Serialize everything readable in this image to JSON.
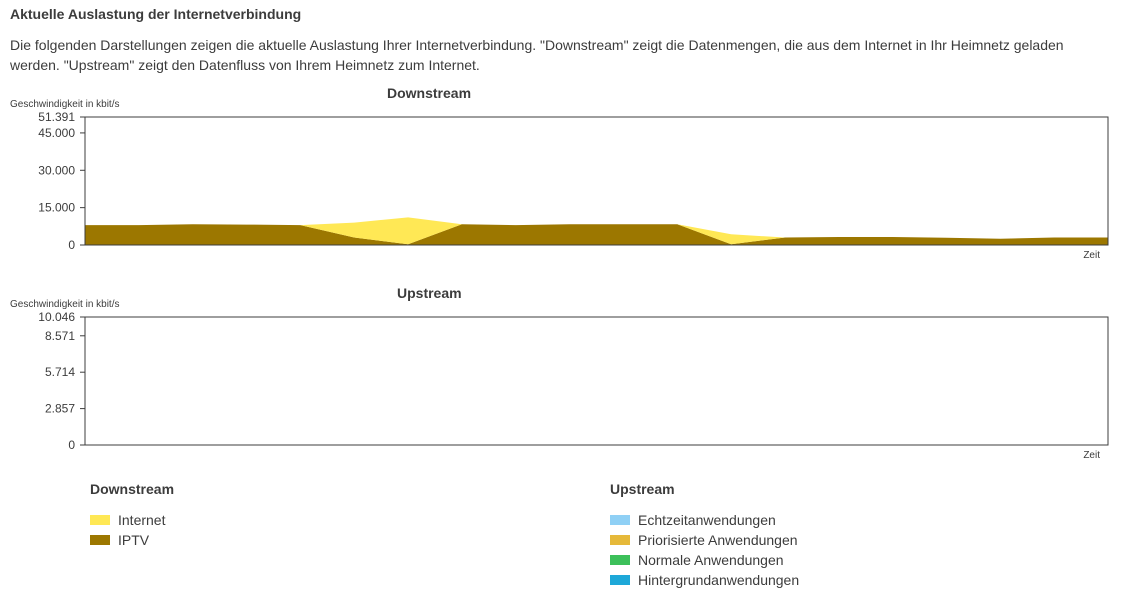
{
  "page": {
    "heading": "Aktuelle Auslastung der Internetverbindung",
    "intro": "Die folgenden Darstellungen zeigen die aktuelle Auslastung Ihrer Internetverbindung. \"Downstream\" zeigt die Datenmengen, die aus dem Internet in Ihr Heimnetz geladen werden. \"Upstream\" zeigt den Datenfluss von Ihrem Heimnetz zum Internet."
  },
  "chart_data": [
    {
      "type": "area",
      "stacked": true,
      "title": "Downstream",
      "ylabel": "Geschwindigkeit in kbit/s",
      "xlabel": "Zeit",
      "ylim": [
        0,
        51391
      ],
      "yticks": [
        "0",
        "15.000",
        "30.000",
        "45.000",
        "51.391"
      ],
      "ytick_values": [
        0,
        15000,
        30000,
        45000,
        51391
      ],
      "grid": false,
      "x": [
        0,
        1,
        2,
        3,
        4,
        5,
        6,
        7,
        8,
        9,
        10,
        11,
        12,
        13,
        14,
        15,
        16,
        17,
        18,
        19
      ],
      "series": [
        {
          "name": "IPTV",
          "color": "#9c7700",
          "values": [
            8000,
            8000,
            8300,
            8200,
            8000,
            3000,
            300,
            8300,
            8000,
            8300,
            8300,
            8300,
            300,
            3000,
            3200,
            3200,
            2900,
            2500,
            3000,
            3000
          ]
        },
        {
          "name": "Internet",
          "color": "#ffe855",
          "values": [
            0,
            0,
            0,
            0,
            0,
            6000,
            10800,
            0,
            0,
            0,
            0,
            0,
            4000,
            0,
            0,
            0,
            0,
            0,
            0,
            0
          ]
        }
      ]
    },
    {
      "type": "area",
      "stacked": true,
      "title": "Upstream",
      "ylabel": "Geschwindigkeit in kbit/s",
      "xlabel": "Zeit",
      "ylim": [
        0,
        10046
      ],
      "yticks": [
        "0",
        "2.857",
        "5.714",
        "8.571",
        "10.046"
      ],
      "ytick_values": [
        0,
        2857,
        5714,
        8571,
        10046
      ],
      "grid": false,
      "x": [
        0,
        1,
        2,
        3,
        4,
        5,
        6,
        7,
        8,
        9,
        10,
        11,
        12,
        13,
        14,
        15,
        16,
        17,
        18,
        19
      ],
      "series": [
        {
          "name": "Echtzeitanwendungen",
          "color": "#8fd0f5",
          "values": [
            0,
            0,
            0,
            0,
            0,
            0,
            0,
            0,
            0,
            0,
            0,
            0,
            0,
            0,
            0,
            0,
            0,
            0,
            0,
            0
          ]
        },
        {
          "name": "Priorisierte Anwendungen",
          "color": "#e6b93a",
          "values": [
            0,
            0,
            0,
            0,
            0,
            0,
            0,
            0,
            0,
            0,
            0,
            0,
            0,
            0,
            0,
            0,
            0,
            0,
            0,
            0
          ]
        },
        {
          "name": "Normale Anwendungen",
          "color": "#3cc05a",
          "values": [
            10,
            10,
            10,
            10,
            10,
            10,
            10,
            10,
            10,
            10,
            10,
            10,
            10,
            10,
            10,
            10,
            10,
            10,
            10,
            10
          ]
        },
        {
          "name": "Hintergrundanwendungen",
          "color": "#1ea8d8",
          "values": [
            0,
            0,
            0,
            0,
            0,
            0,
            0,
            0,
            0,
            0,
            0,
            0,
            0,
            0,
            0,
            0,
            0,
            0,
            0,
            0
          ]
        }
      ]
    }
  ],
  "legend": {
    "downstream": {
      "title": "Downstream",
      "items": [
        {
          "label": "Internet",
          "color": "#ffe855"
        },
        {
          "label": "IPTV",
          "color": "#9c7700"
        }
      ]
    },
    "upstream": {
      "title": "Upstream",
      "items": [
        {
          "label": "Echtzeitanwendungen",
          "color": "#8fd0f5"
        },
        {
          "label": "Priorisierte Anwendungen",
          "color": "#e6b93a"
        },
        {
          "label": "Normale Anwendungen",
          "color": "#3cc05a"
        },
        {
          "label": "Hintergrundanwendungen",
          "color": "#1ea8d8"
        }
      ]
    }
  }
}
